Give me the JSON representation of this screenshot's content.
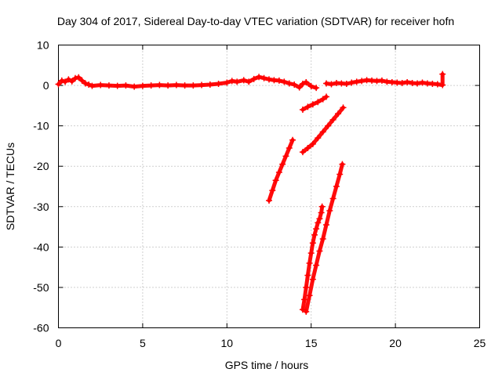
{
  "chart_data": {
    "type": "scatter",
    "title": "Day 304 of 2017, Sidereal Day-to-day VTEC variation (SDTVAR) for receiver hofn",
    "xlabel": "GPS time / hours",
    "ylabel": "SDTVAR / TECUs",
    "xlim": [
      0,
      25
    ],
    "ylim": [
      -60,
      10
    ],
    "xticks": [
      0,
      5,
      10,
      15,
      20,
      25
    ],
    "yticks": [
      10,
      0,
      -10,
      -20,
      -30,
      -40,
      -50,
      -60
    ],
    "grid": true,
    "marker": "plus",
    "color": "#ff0000",
    "series": [
      {
        "points": [
          [
            0.0,
            0.3
          ],
          [
            0.2,
            1.2
          ],
          [
            0.4,
            0.9
          ],
          [
            0.6,
            1.5
          ],
          [
            0.8,
            1.0
          ],
          [
            1.0,
            1.8
          ],
          [
            1.2,
            2.0
          ],
          [
            1.4,
            1.2
          ],
          [
            1.6,
            0.5
          ],
          [
            1.8,
            0.2
          ],
          [
            2.0,
            -0.1
          ],
          [
            2.5,
            0.1
          ],
          [
            3.0,
            0.0
          ],
          [
            3.5,
            -0.1
          ],
          [
            4.0,
            0.0
          ],
          [
            4.5,
            -0.3
          ],
          [
            5.0,
            -0.1
          ],
          [
            5.5,
            0.0
          ],
          [
            6.0,
            0.1
          ],
          [
            6.5,
            0.0
          ],
          [
            7.0,
            0.1
          ],
          [
            7.5,
            0.0
          ],
          [
            8.0,
            0.0
          ],
          [
            8.5,
            0.1
          ],
          [
            9.0,
            0.2
          ],
          [
            9.5,
            0.4
          ],
          [
            10.0,
            0.7
          ],
          [
            10.3,
            1.1
          ],
          [
            10.6,
            0.9
          ],
          [
            11.0,
            1.3
          ],
          [
            11.3,
            0.9
          ],
          [
            11.6,
            1.6
          ],
          [
            11.9,
            2.1
          ],
          [
            12.2,
            1.8
          ],
          [
            12.5,
            1.5
          ],
          [
            12.8,
            1.3
          ],
          [
            13.1,
            1.2
          ],
          [
            13.4,
            0.9
          ],
          [
            13.7,
            0.5
          ],
          [
            14.0,
            0.2
          ],
          [
            14.3,
            -0.5
          ],
          [
            14.5,
            0.4
          ],
          [
            14.7,
            0.8
          ],
          [
            15.0,
            -0.2
          ],
          [
            15.3,
            -0.6
          ]
        ]
      },
      {
        "points": [
          [
            15.9,
            0.5
          ],
          [
            16.2,
            0.3
          ],
          [
            16.5,
            0.6
          ],
          [
            16.8,
            0.5
          ],
          [
            17.1,
            0.4
          ],
          [
            17.4,
            0.7
          ],
          [
            17.7,
            0.9
          ],
          [
            18.0,
            1.1
          ],
          [
            18.3,
            1.3
          ],
          [
            18.6,
            1.2
          ],
          [
            18.9,
            1.1
          ],
          [
            19.2,
            1.2
          ],
          [
            19.5,
            0.9
          ],
          [
            19.8,
            0.8
          ],
          [
            20.1,
            0.7
          ],
          [
            20.4,
            0.6
          ],
          [
            20.7,
            0.8
          ],
          [
            21.0,
            0.6
          ],
          [
            21.3,
            0.5
          ],
          [
            21.6,
            0.7
          ],
          [
            21.9,
            0.5
          ],
          [
            22.2,
            0.4
          ],
          [
            22.5,
            0.3
          ],
          [
            22.8,
            0.1
          ],
          [
            22.8,
            2.8
          ]
        ]
      },
      {
        "points": [
          [
            12.5,
            -28.5
          ],
          [
            12.7,
            -26.0
          ],
          [
            12.9,
            -23.5
          ],
          [
            13.1,
            -21.5
          ],
          [
            13.3,
            -19.5
          ],
          [
            13.5,
            -17.5
          ],
          [
            13.7,
            -15.5
          ],
          [
            13.9,
            -13.5
          ]
        ]
      },
      {
        "points": [
          [
            14.5,
            -6.0
          ],
          [
            14.8,
            -5.3
          ],
          [
            15.1,
            -4.7
          ],
          [
            15.4,
            -4.1
          ],
          [
            15.7,
            -3.4
          ],
          [
            15.9,
            -2.8
          ]
        ]
      },
      {
        "points": [
          [
            14.5,
            -16.5
          ],
          [
            14.8,
            -15.5
          ],
          [
            15.1,
            -14.5
          ],
          [
            15.4,
            -13.0
          ],
          [
            15.7,
            -11.5
          ],
          [
            16.0,
            -10.0
          ],
          [
            16.3,
            -8.5
          ],
          [
            16.6,
            -7.0
          ],
          [
            16.9,
            -5.5
          ]
        ]
      },
      {
        "points": [
          [
            14.5,
            -55.5
          ],
          [
            14.6,
            -53.0
          ],
          [
            14.7,
            -50.0
          ],
          [
            14.8,
            -47.0
          ],
          [
            14.9,
            -44.0
          ],
          [
            15.0,
            -41.5
          ],
          [
            15.1,
            -39.0
          ],
          [
            15.2,
            -37.0
          ],
          [
            15.3,
            -35.5
          ],
          [
            15.4,
            -34.0
          ],
          [
            15.5,
            -33.0
          ],
          [
            15.6,
            -31.5
          ],
          [
            15.65,
            -30.0
          ]
        ]
      },
      {
        "points": [
          [
            14.7,
            -56.0
          ],
          [
            14.9,
            -52.0
          ],
          [
            15.1,
            -48.0
          ],
          [
            15.3,
            -44.5
          ],
          [
            15.5,
            -41.0
          ],
          [
            15.7,
            -38.0
          ],
          [
            15.9,
            -34.5
          ],
          [
            16.1,
            -31.0
          ],
          [
            16.3,
            -28.0
          ],
          [
            16.5,
            -25.0
          ],
          [
            16.7,
            -22.0
          ],
          [
            16.85,
            -19.5
          ]
        ]
      }
    ]
  }
}
